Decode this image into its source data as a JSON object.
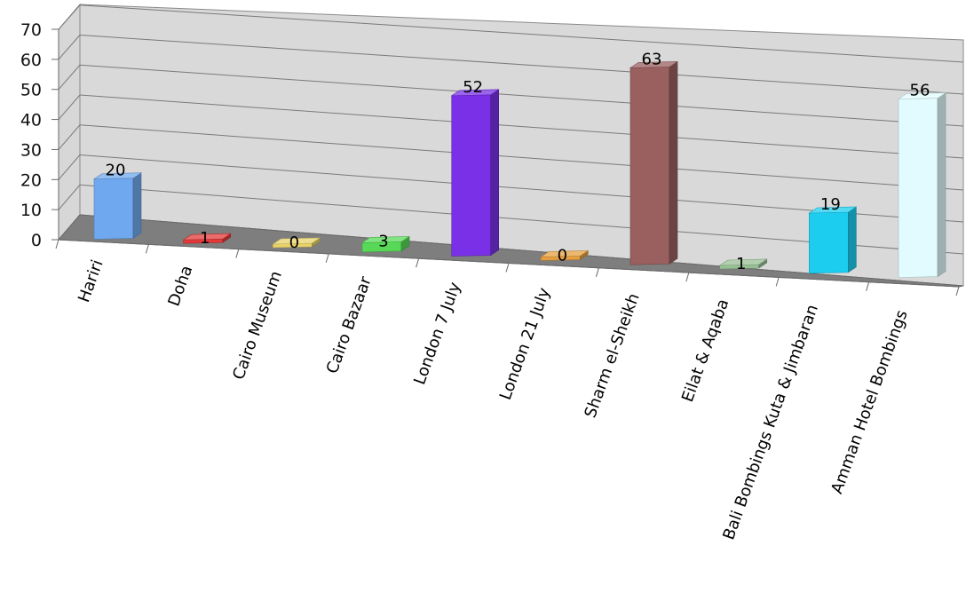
{
  "chart_data": {
    "type": "bar",
    "title": "",
    "xlabel": "",
    "ylabel": "",
    "ylim": [
      0,
      70
    ],
    "yticks": [
      0,
      10,
      20,
      30,
      40,
      50,
      60,
      70
    ],
    "grid": true,
    "categories": [
      "Hariri",
      "Doha",
      "Cairo Museum",
      "Cairo Bazaar",
      "London 7 July",
      "London 21 July",
      "Sharm el-Sheikh",
      "Eilat & Aqaba",
      "Bali Bombings Kuta & Jimbaran",
      "Amman Hotel Bombings"
    ],
    "values": [
      20,
      1,
      0,
      3,
      52,
      0,
      63,
      1,
      19,
      56
    ],
    "colors": [
      "#6fa8ee",
      "#e23a3a",
      "#e8d36a",
      "#57d957",
      "#7a30e6",
      "#e6a040",
      "#9a5f5f",
      "#98c095",
      "#1ccdf0",
      "#e2fbfe"
    ]
  }
}
